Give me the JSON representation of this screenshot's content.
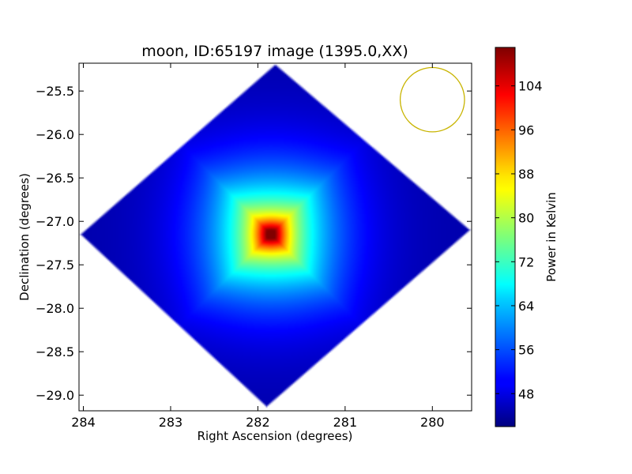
{
  "chart_data": {
    "type": "heatmap",
    "title": "moon, ID:65197 image (1395.0,XX)",
    "xlabel": "Right Ascension (degrees)",
    "ylabel": "Declination (degrees)",
    "xlim": [
      284.05,
      279.55
    ],
    "ylim": [
      -29.18,
      -25.18
    ],
    "x_ticks": [
      284,
      283,
      282,
      281,
      280
    ],
    "x_tick_labels": [
      "284",
      "283",
      "282",
      "281",
      "280"
    ],
    "y_ticks": [
      -25.5,
      -26.0,
      -26.5,
      -27.0,
      -27.5,
      -28.0,
      -28.5,
      -29.0
    ],
    "y_tick_labels": [
      "−25.5",
      "−26.0",
      "−26.5",
      "−27.0",
      "−27.5",
      "−28.0",
      "−28.5",
      "−29.0"
    ],
    "colorbar": {
      "label": "Power in Kelvin",
      "range": [
        42,
        111
      ],
      "ticks": [
        48,
        56,
        64,
        72,
        80,
        88,
        96,
        104
      ],
      "tick_labels": [
        "48",
        "56",
        "64",
        "72",
        "80",
        "88",
        "96",
        "104"
      ],
      "colormap": "jet"
    },
    "field_footprint": {
      "shape": "rounded diamond",
      "top": [
        281.8,
        -25.18
      ],
      "right": [
        279.55,
        -27.1
      ],
      "bottom": [
        281.9,
        -29.15
      ],
      "left": [
        284.05,
        -27.15
      ]
    },
    "source": {
      "name": "moon",
      "center": [
        281.85,
        -27.15
      ],
      "peak_value": 111,
      "background_value": 45
    },
    "beam_circle": {
      "center": [
        280.0,
        -25.6
      ],
      "radius_deg": 0.37,
      "color": "#c8b400"
    },
    "colors": {
      "frame": "#000000",
      "background": "#ffffff"
    }
  }
}
